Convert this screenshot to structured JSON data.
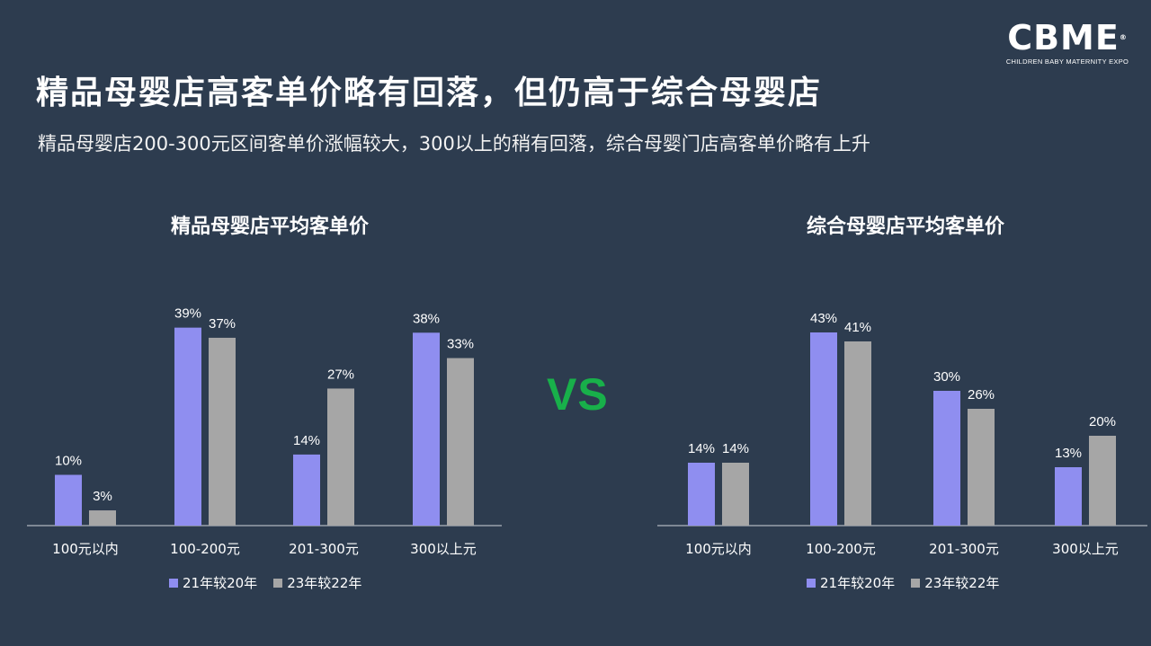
{
  "logo": {
    "mark": "CBME",
    "reg": "®",
    "tagline": "CHILDREN BABY MATERNITY EXPO"
  },
  "title": "精品母婴店高客单价略有回落，但仍高于综合母婴店",
  "subtitle": "精品母婴店200-300元区间客单价涨幅较大，300以上的稍有回落，综合母婴门店高客单价略有上升",
  "vs_label": "VS",
  "colors": {
    "series1": "#8f8ef0",
    "series2": "#a6a6a6",
    "vs": "#18b04a",
    "background": "#2d3c4f"
  },
  "chart_data": [
    {
      "type": "bar",
      "title": "精品母婴店平均客单价",
      "categories": [
        "100元以内",
        "100-200元",
        "201-300元",
        "300以上元"
      ],
      "series": [
        {
          "name": "21年较20年",
          "values": [
            10,
            39,
            14,
            38
          ],
          "labels": [
            "10%",
            "39%",
            "14%",
            "38%"
          ]
        },
        {
          "name": "23年较22年",
          "values": [
            3,
            37,
            27,
            33
          ],
          "labels": [
            "3%",
            "37%",
            "27%",
            "33%"
          ]
        }
      ],
      "ylim": [
        0,
        45
      ],
      "legend_position": "bottom"
    },
    {
      "type": "bar",
      "title": "综合母婴店平均客单价",
      "categories": [
        "100元以内",
        "100-200元",
        "201-300元",
        "300以上元"
      ],
      "series": [
        {
          "name": "21年较20年",
          "values": [
            14,
            43,
            30,
            13
          ],
          "labels": [
            "14%",
            "43%",
            "30%",
            "13%"
          ]
        },
        {
          "name": "23年较22年",
          "values": [
            14,
            41,
            26,
            20
          ],
          "labels": [
            "14%",
            "41%",
            "26%",
            "20%"
          ]
        }
      ],
      "ylim": [
        0,
        45
      ],
      "legend_position": "bottom"
    }
  ]
}
